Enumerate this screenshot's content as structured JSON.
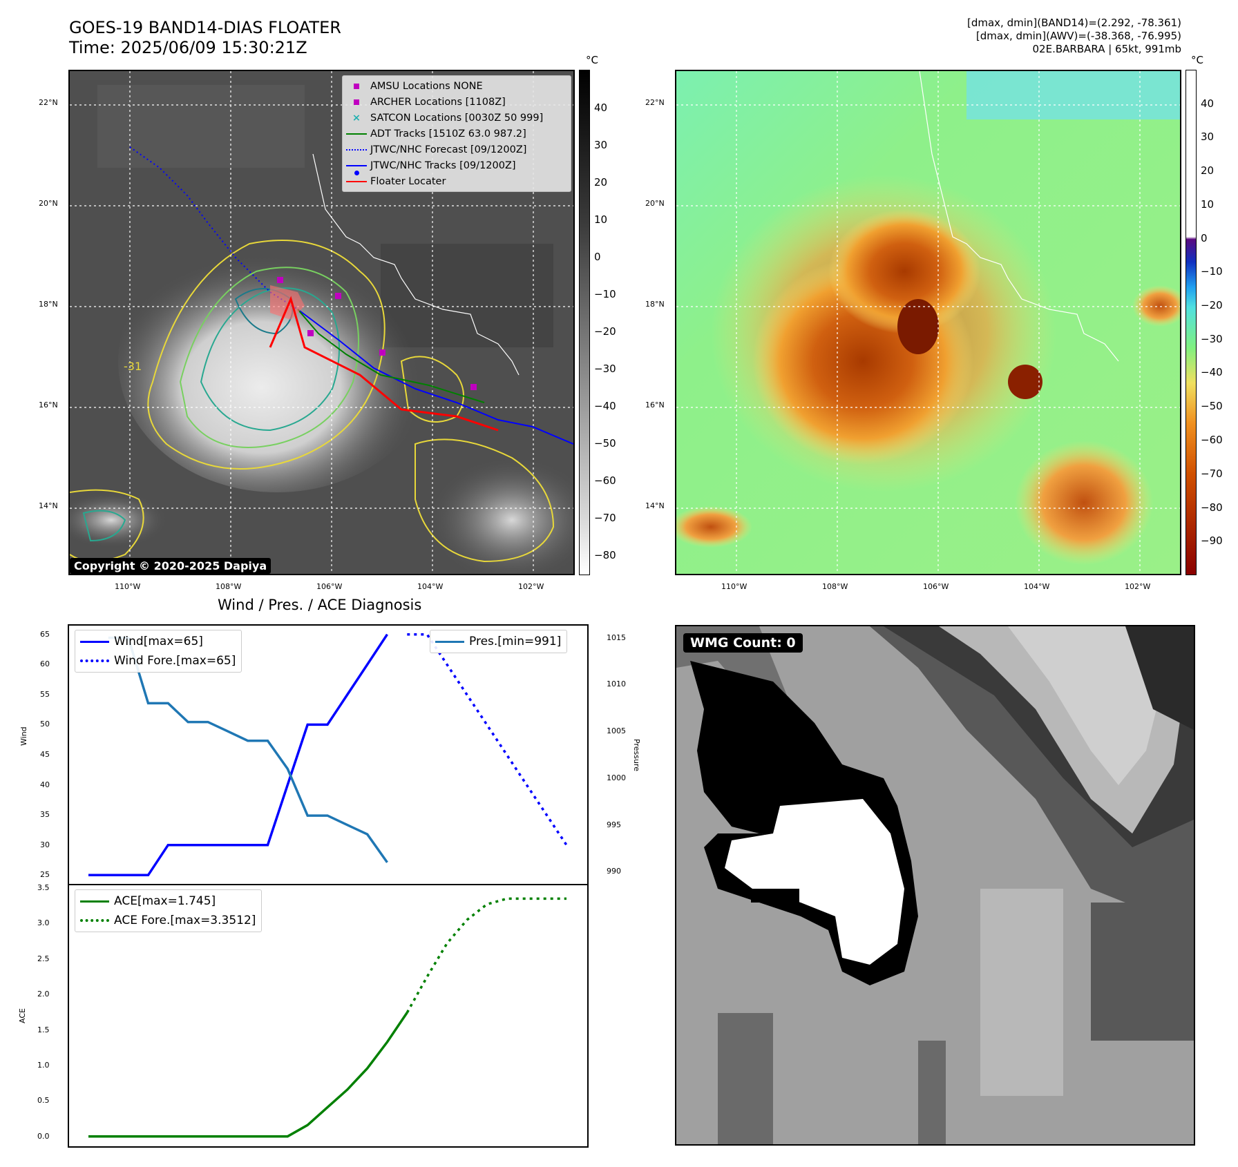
{
  "header": {
    "title_line1": "GOES-19 BAND14-DIAS FLOATER",
    "title_line2": "Time: 2025/06/09 15:30:21Z",
    "info_line1": "[dmax, dmin](BAND14)=(2.292, -78.361)",
    "info_line2": "[dmax, dmin](AWV)=(-38.368, -76.995)",
    "info_line3": "02E.BARBARA | 65kt, 991mb"
  },
  "ir_map": {
    "lat_labels": [
      "22°N",
      "20°N",
      "18°N",
      "16°N",
      "14°N"
    ],
    "lon_labels": [
      "110°W",
      "108°W",
      "106°W",
      "104°W",
      "102°W"
    ],
    "legend": [
      {
        "label": "AMSU Locations NONE",
        "symbol": "square",
        "color": "#c000c0"
      },
      {
        "label": "ARCHER Locations [1108Z]",
        "symbol": "square",
        "color": "#c000c0"
      },
      {
        "label": "SATCON Locations [0030Z 50 999]",
        "symbol": "x",
        "color": "#20b0b0"
      },
      {
        "label": "ADT Tracks [1510Z 63.0 987.2]",
        "symbol": "line",
        "color": "#008000"
      },
      {
        "label": "JTWC/NHC Forecast [09/1200Z]",
        "symbol": "dotted",
        "color": "#0000ff"
      },
      {
        "label": "JTWC/NHC Tracks [09/1200Z]",
        "symbol": "line-dot",
        "color": "#0000ff"
      },
      {
        "label": "Floater Locater",
        "symbol": "line",
        "color": "#ff0000"
      }
    ],
    "copyright": "Copyright © 2020-2025 Dapiya",
    "contour_label": "-31",
    "colorbar_unit": "°C",
    "colorbar_ticks": [
      "40",
      "30",
      "20",
      "10",
      "0",
      "−10",
      "−20",
      "−30",
      "−40",
      "−50",
      "−60",
      "−70",
      "−80"
    ]
  },
  "awv_map": {
    "lat_labels": [
      "22°N",
      "20°N",
      "18°N",
      "16°N",
      "14°N"
    ],
    "lon_labels": [
      "110°W",
      "108°W",
      "106°W",
      "104°W",
      "102°W"
    ],
    "colorbar_unit": "°C",
    "colorbar_ticks": [
      "40",
      "30",
      "20",
      "10",
      "0",
      "−10",
      "−20",
      "−30",
      "−40",
      "−50",
      "−60",
      "−70",
      "−80",
      "−90"
    ]
  },
  "wmg": {
    "label": "WMG Count: 0"
  },
  "chart_data": [
    {
      "type": "line",
      "title": "Wind / Pres. / ACE Diagnosis",
      "ylabel": "Wind",
      "ylabel_right": "Pressure",
      "ylim": [
        24,
        66
      ],
      "ylim_right": [
        989,
        1016
      ],
      "y_ticks": [
        "65",
        "60",
        "55",
        "50",
        "45",
        "40",
        "35",
        "30",
        "25"
      ],
      "y_ticks_right": [
        "1015",
        "1010",
        "1005",
        "1000",
        "995",
        "990"
      ],
      "x": [
        0,
        1,
        2,
        3,
        4,
        5,
        6,
        7,
        8,
        9,
        10,
        11,
        12,
        13,
        14,
        15,
        16,
        17,
        18,
        19,
        20,
        21,
        22,
        23,
        24
      ],
      "series": [
        {
          "name": "Wind[max=65]",
          "color": "#0000ff",
          "style": "solid",
          "axis": "left",
          "x": [
            0,
            1,
            2,
            3,
            4,
            5,
            6,
            7,
            8,
            9,
            10,
            11,
            12,
            13,
            14,
            15,
            16
          ],
          "values": [
            25,
            25,
            25,
            25,
            30,
            30,
            30,
            30,
            30,
            30,
            40,
            50,
            50,
            55,
            60,
            65,
            null
          ]
        },
        {
          "name": "Wind Fore.[max=65]",
          "color": "#0000ff",
          "style": "dotted",
          "axis": "left",
          "x": [
            16,
            17,
            18,
            19,
            20,
            21,
            22,
            23,
            24
          ],
          "values": [
            65,
            65,
            60,
            55,
            50,
            45,
            40,
            35,
            30
          ]
        },
        {
          "name": "Pres.[min=991]",
          "color": "#1f77b4",
          "style": "solid",
          "axis": "right",
          "x": [
            1,
            2,
            3,
            4,
            5,
            6,
            7,
            8,
            9,
            10,
            11,
            12,
            13,
            14,
            15,
            16
          ],
          "values": [
            1015,
            1015,
            1008,
            1008,
            1006,
            1006,
            1005,
            1004,
            1004,
            1001,
            996,
            996,
            995,
            994,
            991,
            null
          ]
        }
      ]
    },
    {
      "type": "line",
      "ylabel": "ACE",
      "ylim": [
        -0.1,
        3.5
      ],
      "y_ticks": [
        "3.5",
        "3.0",
        "2.5",
        "2.0",
        "1.5",
        "1.0",
        "0.5",
        "0.0"
      ],
      "series": [
        {
          "name": "ACE[max=1.745]",
          "color": "#008000",
          "style": "solid",
          "x": [
            0,
            1,
            2,
            3,
            4,
            5,
            6,
            7,
            8,
            9,
            10,
            11,
            12,
            13,
            14,
            15,
            16
          ],
          "values": [
            0,
            0,
            0,
            0,
            0,
            0,
            0,
            0,
            0,
            0,
            0,
            0.16,
            0.41,
            0.66,
            0.96,
            1.33,
            1.745
          ]
        },
        {
          "name": "ACE Fore.[max=3.3512]",
          "color": "#008000",
          "style": "dotted",
          "x": [
            16,
            17,
            18,
            19,
            20,
            21,
            22,
            23,
            24
          ],
          "values": [
            1.745,
            2.25,
            2.72,
            3.05,
            3.27,
            3.35,
            3.35,
            3.35,
            3.35
          ]
        }
      ]
    }
  ]
}
